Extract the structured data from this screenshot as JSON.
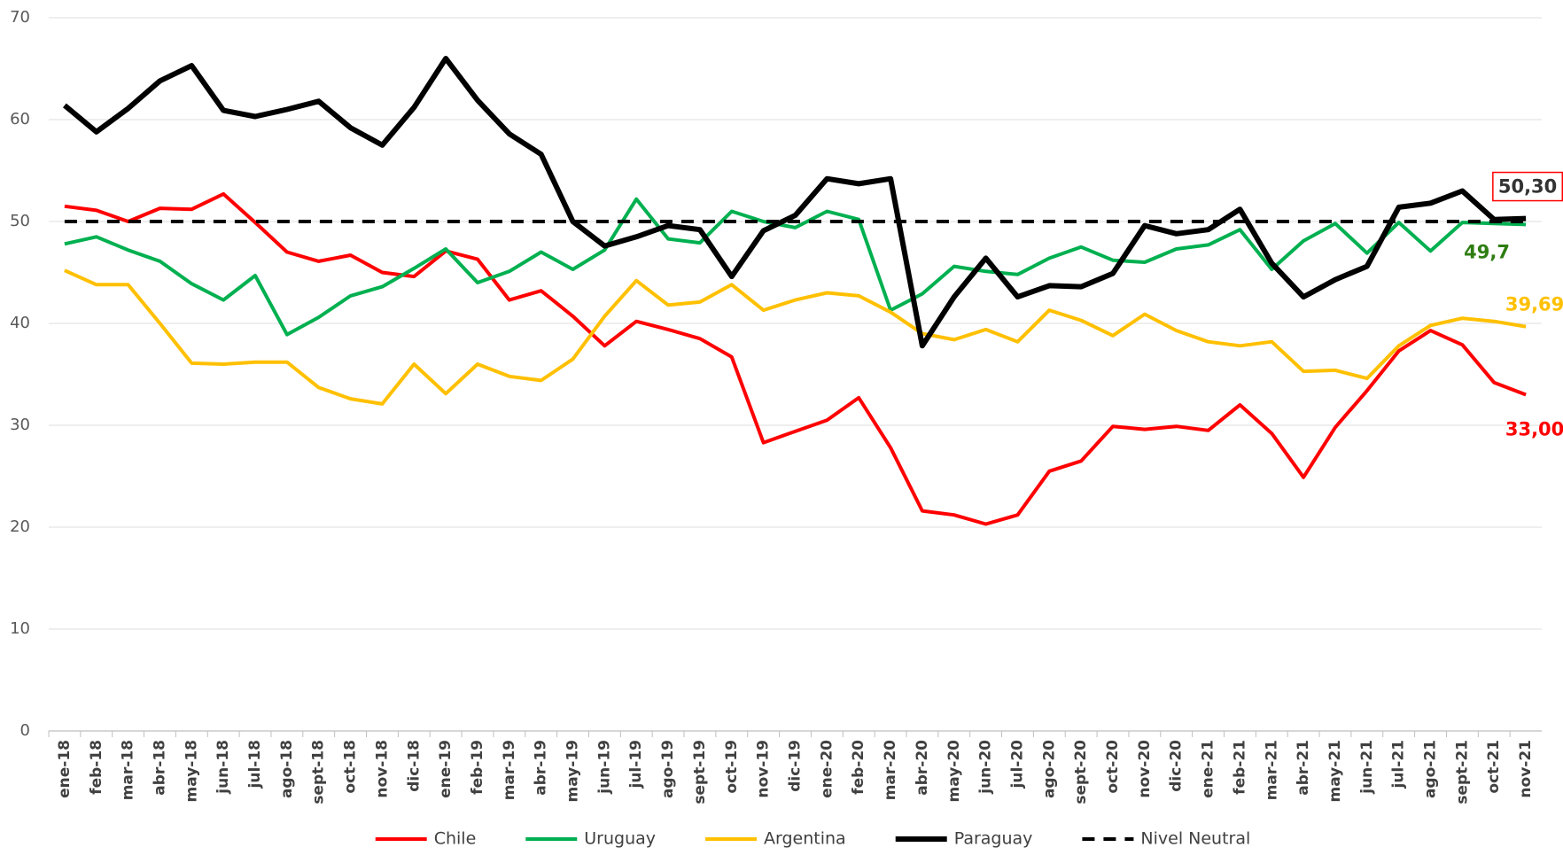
{
  "chart_data": {
    "type": "line",
    "categories": [
      "ene-18",
      "feb-18",
      "mar-18",
      "abr-18",
      "may-18",
      "jun-18",
      "jul-18",
      "ago-18",
      "sept-18",
      "oct-18",
      "nov-18",
      "dic-18",
      "ene-19",
      "feb-19",
      "mar-19",
      "abr-19",
      "may-19",
      "jun-19",
      "jul-19",
      "ago-19",
      "sept-19",
      "oct-19",
      "nov-19",
      "dic-19",
      "ene-20",
      "feb-20",
      "mar-20",
      "abr-20",
      "may-20",
      "jun-20",
      "jul-20",
      "ago-20",
      "sept-20",
      "oct-20",
      "nov-20",
      "dic-20",
      "ene-21",
      "feb-21",
      "mar-21",
      "abr-21",
      "may-21",
      "jun-21",
      "jul-21",
      "ago-21",
      "sept-21",
      "oct-21",
      "nov-21"
    ],
    "ylim": [
      0,
      70
    ],
    "yticks": [
      0,
      10,
      20,
      30,
      40,
      50,
      60,
      70
    ],
    "grid": true,
    "legend": "bottom",
    "series": [
      {
        "name": "Chile",
        "color": "#ff0000",
        "width": 4,
        "label_color": "#ff0000",
        "values": [
          51.5,
          51.1,
          50.0,
          51.3,
          51.2,
          52.7,
          49.9,
          47.0,
          46.1,
          46.7,
          45.0,
          44.6,
          47.1,
          46.3,
          42.3,
          43.2,
          40.7,
          37.8,
          40.2,
          39.4,
          38.5,
          36.7,
          28.3,
          29.4,
          30.5,
          32.7,
          27.8,
          21.6,
          21.2,
          20.3,
          21.2,
          25.5,
          26.5,
          29.9,
          29.6,
          29.9,
          29.5,
          32.0,
          29.2,
          24.9,
          29.8,
          33.4,
          37.3,
          39.3,
          37.9,
          34.2,
          33.0
        ],
        "value_labels": [
          null,
          null,
          null,
          null,
          null,
          null,
          null,
          null,
          null,
          null,
          null,
          null,
          null,
          null,
          null,
          null,
          null,
          null,
          null,
          null,
          null,
          null,
          null,
          null,
          null,
          null,
          null,
          null,
          null,
          null,
          null,
          null,
          null,
          null,
          null,
          null,
          null,
          null,
          null,
          null,
          null,
          null,
          null,
          null,
          null,
          null,
          "33,00"
        ]
      },
      {
        "name": "Uruguay",
        "color": "#00b050",
        "width": 4,
        "label_color": "#2e7d12",
        "values": [
          47.8,
          48.5,
          47.2,
          46.1,
          43.9,
          42.3,
          44.7,
          38.9,
          40.6,
          42.7,
          43.6,
          45.4,
          47.3,
          44.0,
          45.1,
          47.0,
          45.3,
          47.2,
          52.2,
          48.3,
          47.9,
          51.0,
          50.0,
          49.4,
          51.0,
          50.2,
          41.3,
          42.9,
          45.6,
          45.1,
          44.8,
          46.4,
          47.5,
          46.2,
          46.0,
          47.3,
          47.7,
          49.2,
          45.3,
          48.1,
          49.8,
          46.9,
          49.9,
          47.1,
          49.9,
          49.8,
          49.7
        ],
        "value_labels": [
          null,
          null,
          null,
          null,
          null,
          null,
          null,
          null,
          null,
          null,
          null,
          null,
          null,
          null,
          null,
          null,
          null,
          null,
          null,
          null,
          null,
          null,
          null,
          null,
          null,
          null,
          null,
          null,
          null,
          null,
          null,
          null,
          null,
          null,
          null,
          null,
          null,
          null,
          null,
          null,
          null,
          null,
          null,
          null,
          null,
          null,
          "49,7"
        ]
      },
      {
        "name": "Argentina",
        "color": "#ffc000",
        "width": 4,
        "label_color": "#ffc000",
        "values": [
          45.2,
          43.8,
          43.8,
          40.0,
          36.1,
          36.0,
          36.2,
          36.2,
          33.7,
          32.6,
          32.1,
          36.0,
          33.1,
          36.0,
          34.8,
          34.4,
          36.5,
          40.7,
          44.2,
          41.8,
          42.1,
          43.8,
          41.3,
          42.3,
          43.0,
          42.7,
          41.1,
          39.0,
          38.4,
          39.4,
          38.2,
          41.3,
          40.3,
          38.8,
          40.9,
          39.3,
          38.2,
          37.8,
          38.2,
          35.3,
          35.4,
          34.6,
          37.8,
          39.8,
          40.5,
          40.2,
          39.69
        ],
        "value_labels": [
          null,
          null,
          null,
          null,
          null,
          null,
          null,
          null,
          null,
          null,
          null,
          null,
          null,
          null,
          null,
          null,
          null,
          null,
          null,
          null,
          null,
          null,
          null,
          null,
          null,
          null,
          null,
          null,
          null,
          null,
          null,
          null,
          null,
          null,
          null,
          null,
          null,
          null,
          null,
          null,
          null,
          null,
          null,
          null,
          null,
          null,
          "39,69"
        ]
      },
      {
        "name": "Paraguay",
        "color": "#000000",
        "width": 6,
        "label_color": "#333333",
        "label_boxed": true,
        "label_box_color": "#ff0000",
        "values": [
          61.4,
          58.8,
          61.1,
          63.8,
          65.3,
          60.9,
          60.3,
          61.0,
          61.8,
          59.2,
          57.5,
          61.2,
          66.0,
          61.9,
          58.6,
          56.6,
          50.0,
          47.6,
          48.5,
          49.6,
          49.2,
          44.6,
          49.1,
          50.6,
          54.2,
          53.7,
          54.2,
          37.8,
          42.6,
          46.4,
          42.6,
          43.7,
          43.6,
          44.9,
          49.6,
          48.8,
          49.2,
          51.2,
          45.9,
          42.6,
          44.3,
          45.6,
          51.4,
          51.8,
          53.0,
          50.2,
          50.3
        ],
        "value_labels": [
          null,
          null,
          null,
          null,
          null,
          null,
          null,
          null,
          null,
          null,
          null,
          null,
          null,
          null,
          null,
          null,
          null,
          null,
          null,
          null,
          null,
          null,
          null,
          null,
          null,
          null,
          null,
          null,
          null,
          null,
          null,
          null,
          null,
          null,
          null,
          null,
          null,
          null,
          null,
          null,
          null,
          null,
          null,
          null,
          null,
          null,
          "50,30"
        ]
      },
      {
        "name": "Nivel Neutral",
        "color": "#000000",
        "width": 4,
        "dashed": true,
        "values": [
          50,
          50,
          50,
          50,
          50,
          50,
          50,
          50,
          50,
          50,
          50,
          50,
          50,
          50,
          50,
          50,
          50,
          50,
          50,
          50,
          50,
          50,
          50,
          50,
          50,
          50,
          50,
          50,
          50,
          50,
          50,
          50,
          50,
          50,
          50,
          50,
          50,
          50,
          50,
          50,
          50,
          50,
          50,
          50,
          50,
          50,
          50
        ]
      }
    ]
  }
}
